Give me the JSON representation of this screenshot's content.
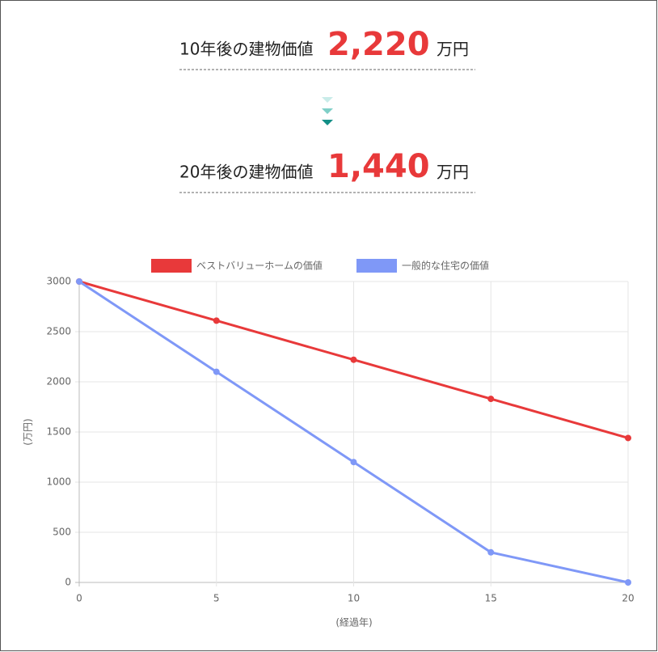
{
  "summary": [
    {
      "label": "10年後の建物価値",
      "value": "2,220",
      "unit": "万円"
    },
    {
      "label": "20年後の建物価値",
      "value": "1,440",
      "unit": "万円"
    }
  ],
  "chart_data": {
    "type": "line",
    "x": [
      0,
      5,
      10,
      15,
      20
    ],
    "series": [
      {
        "name": "ベストバリューホームの価値",
        "color": "#e8393a",
        "values": [
          3000,
          2610,
          2220,
          1830,
          1440
        ]
      },
      {
        "name": "一般的な住宅の価値",
        "color": "#7f98f7",
        "values": [
          3000,
          2100,
          1200,
          300,
          0
        ]
      }
    ],
    "xlim": [
      0,
      20
    ],
    "xticks": [
      0,
      5,
      10,
      15,
      20
    ],
    "ylim": [
      0,
      3000
    ],
    "yticks": [
      0,
      500,
      1000,
      1500,
      2000,
      2500,
      3000
    ],
    "xlabel": "(経過年)",
    "ylabel": "(万円)",
    "grid": true,
    "legend": "top"
  }
}
